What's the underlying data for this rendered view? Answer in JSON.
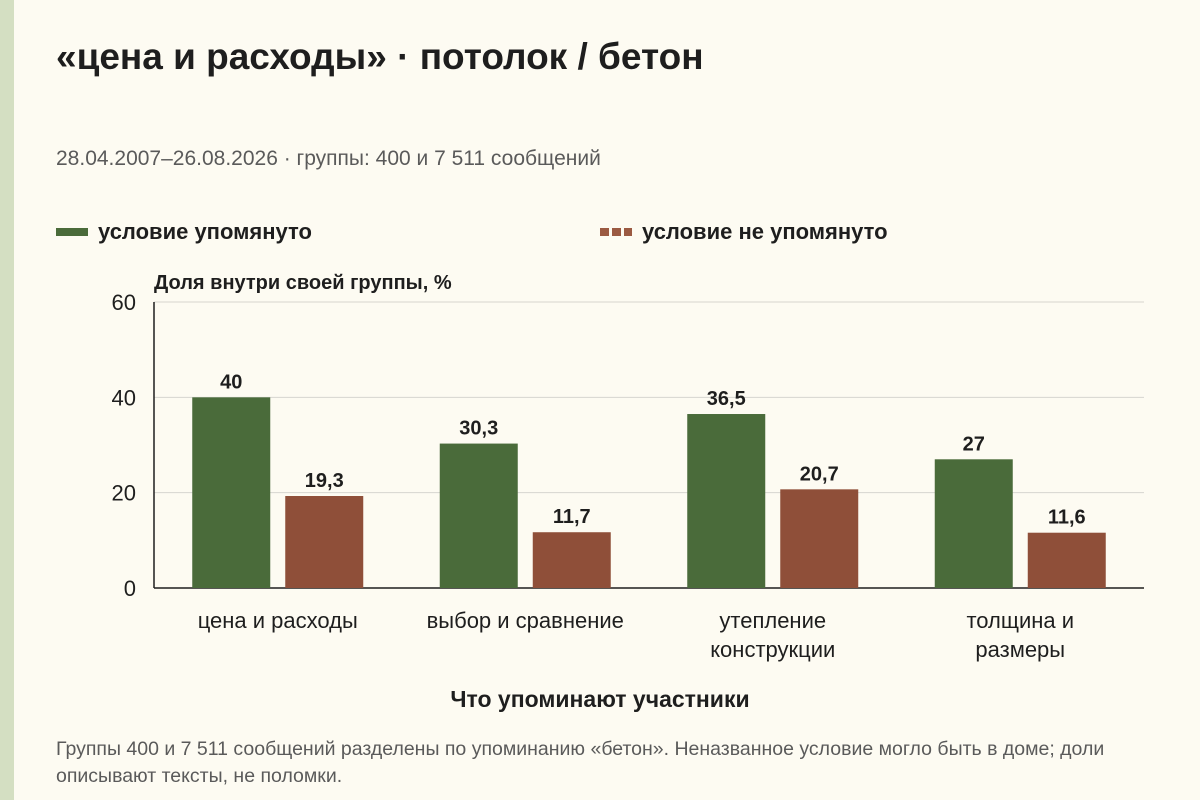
{
  "title": "«цена и расходы» · потолок / бетон",
  "subtitle": "28.04.2007–26.08.2026 · группы: 400 и 7 511 сообщений",
  "legend": {
    "mentioned": "условие упомянуто",
    "not_mentioned": "условие не упомянуто"
  },
  "footnote": "Группы 400 и 7 511 сообщений разделены по упоминанию «бетон». Неназванное условие могло быть в доме; доли описывают тексты, не поломки.",
  "colors": {
    "mentioned": "#4a6b3a",
    "not_mentioned": "#8f4f39",
    "accent": "#d4dfc2"
  },
  "chart_data": {
    "type": "bar",
    "title": "«цена и расходы» · потолок / бетон",
    "xlabel": "Что упоминают участники",
    "ylabel": "Доля внутри своей группы, %",
    "ylim": [
      0,
      60
    ],
    "yticks": [
      0,
      20,
      40,
      60
    ],
    "grid": true,
    "legend_position": "top",
    "categories": [
      [
        "цена и расходы"
      ],
      [
        "выбор и сравнение"
      ],
      [
        "утепление",
        "конструкции"
      ],
      [
        "толщина и",
        "размеры"
      ]
    ],
    "series": [
      {
        "name": "условие упомянуто",
        "values": [
          40,
          30.3,
          36.5,
          27
        ]
      },
      {
        "name": "условие не упомянуто",
        "values": [
          19.3,
          11.7,
          20.7,
          11.6
        ]
      }
    ]
  }
}
